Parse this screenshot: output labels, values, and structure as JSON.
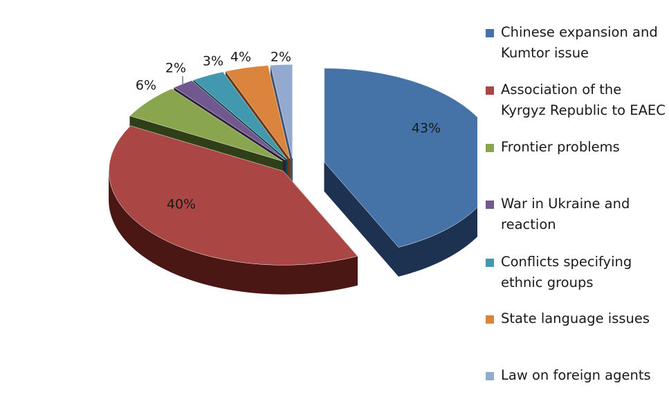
{
  "chart_data": {
    "type": "pie",
    "title": "",
    "three_d": true,
    "exploded": true,
    "legend_position": "right",
    "categories": [
      "Chinese expansion and Kumtor issue",
      "Association of the Kyrgyz Republic to EAEC",
      "Frontier problems",
      "War in Ukraine and reaction",
      "Conflicts specifying ethnic groups",
      "State language issues",
      "Law on foreign agents"
    ],
    "values": [
      43,
      40,
      6,
      2,
      3,
      4,
      2
    ],
    "data_labels": [
      "43%",
      "40%",
      "6%",
      "2%",
      "3%",
      "4%",
      "2%"
    ],
    "colors": [
      "#4572A7",
      "#AA4643",
      "#89A54E",
      "#71588F",
      "#4198AF",
      "#DB843D",
      "#93A9CF"
    ],
    "side_colors": [
      "#1d3150",
      "#4a1714",
      "#2f3f17",
      "#2a1f3b",
      "#13404d",
      "#6a3a12",
      "#45546e"
    ]
  }
}
